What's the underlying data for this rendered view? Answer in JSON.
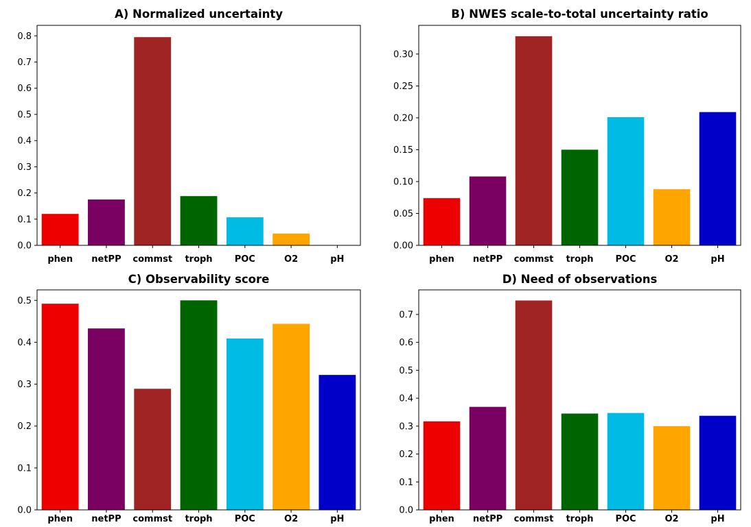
{
  "chart_data": [
    {
      "type": "bar",
      "title": "A) Normalized uncertainty",
      "categories": [
        "phen",
        "netPP",
        "commst",
        "troph",
        "POC",
        "O2",
        "pH"
      ],
      "values": [
        0.12,
        0.175,
        0.795,
        0.188,
        0.107,
        0.045,
        0.0
      ],
      "colors": [
        "#ee0000",
        "#7a0062",
        "#a02424",
        "#006400",
        "#00bbe3",
        "#ffa500",
        "#0000c8"
      ],
      "ylim": [
        0,
        0.84
      ],
      "yticks": [
        0.0,
        0.1,
        0.2,
        0.3,
        0.4,
        0.5,
        0.6,
        0.7,
        0.8
      ],
      "ytick_labels": [
        "0.0",
        "0.1",
        "0.2",
        "0.3",
        "0.4",
        "0.5",
        "0.6",
        "0.7",
        "0.8"
      ],
      "xlabel": "",
      "ylabel": ""
    },
    {
      "type": "bar",
      "title": "B) NWES scale-to-total uncertainty ratio",
      "categories": [
        "phen",
        "netPP",
        "commst",
        "troph",
        "POC",
        "O2",
        "pH"
      ],
      "values": [
        0.074,
        0.108,
        0.328,
        0.15,
        0.201,
        0.088,
        0.209
      ],
      "colors": [
        "#ee0000",
        "#7a0062",
        "#a02424",
        "#006400",
        "#00bbe3",
        "#ffa500",
        "#0000c8"
      ],
      "ylim": [
        0,
        0.345
      ],
      "yticks": [
        0.0,
        0.05,
        0.1,
        0.15,
        0.2,
        0.25,
        0.3
      ],
      "ytick_labels": [
        "0.00",
        "0.05",
        "0.10",
        "0.15",
        "0.20",
        "0.25",
        "0.30"
      ],
      "xlabel": "",
      "ylabel": ""
    },
    {
      "type": "bar",
      "title": "C) Observability score",
      "categories": [
        "phen",
        "netPP",
        "commst",
        "troph",
        "POC",
        "O2",
        "pH"
      ],
      "values": [
        0.492,
        0.433,
        0.289,
        0.5,
        0.409,
        0.444,
        0.322
      ],
      "colors": [
        "#ee0000",
        "#7a0062",
        "#a02424",
        "#006400",
        "#00bbe3",
        "#ffa500",
        "#0000c8"
      ],
      "ylim": [
        0,
        0.525
      ],
      "yticks": [
        0.0,
        0.1,
        0.2,
        0.3,
        0.4,
        0.5
      ],
      "ytick_labels": [
        "0.0",
        "0.1",
        "0.2",
        "0.3",
        "0.4",
        "0.5"
      ],
      "xlabel": "",
      "ylabel": ""
    },
    {
      "type": "bar",
      "title": "D) Need of observations",
      "categories": [
        "phen",
        "netPP",
        "commst",
        "troph",
        "POC",
        "O2",
        "pH"
      ],
      "values": [
        0.317,
        0.369,
        0.75,
        0.345,
        0.347,
        0.3,
        0.337
      ],
      "colors": [
        "#ee0000",
        "#7a0062",
        "#a02424",
        "#006400",
        "#00bbe3",
        "#ffa500",
        "#0000c8"
      ],
      "ylim": [
        0,
        0.788
      ],
      "yticks": [
        0.0,
        0.1,
        0.2,
        0.3,
        0.4,
        0.5,
        0.6,
        0.7
      ],
      "ytick_labels": [
        "0.0",
        "0.1",
        "0.2",
        "0.3",
        "0.4",
        "0.5",
        "0.6",
        "0.7"
      ],
      "xlabel": "",
      "ylabel": ""
    }
  ]
}
